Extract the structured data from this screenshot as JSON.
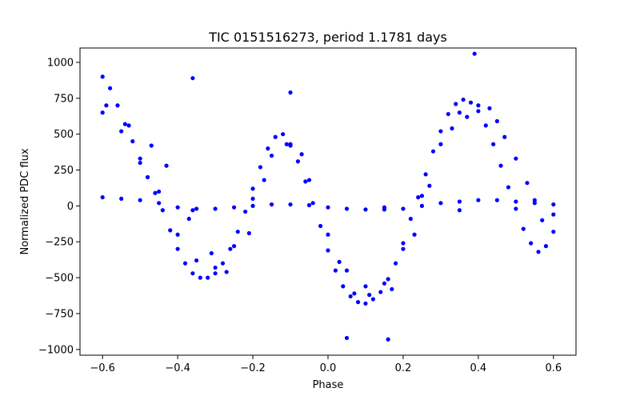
{
  "chart_data": {
    "type": "scatter",
    "title": "TIC 0151516273, period 1.1781 days",
    "xlabel": "Phase",
    "ylabel": "Normalized PDC flux",
    "xlim": [
      -0.66,
      0.66
    ],
    "ylim": [
      -1040,
      1100
    ],
    "xticks": [
      -0.6,
      -0.4,
      -0.2,
      0.0,
      0.2,
      0.4,
      0.6
    ],
    "xtick_labels": [
      "−0.6",
      "−0.4",
      "−0.2",
      "0.0",
      "0.2",
      "0.4",
      "0.6"
    ],
    "yticks": [
      1000,
      750,
      500,
      250,
      0,
      -250,
      -500,
      -750,
      -1000
    ],
    "ytick_labels": [
      "1000",
      "750",
      "500",
      "250",
      "0",
      "−250",
      "−500",
      "−750",
      "−1000"
    ],
    "grid": false,
    "marker_color": "#0000ff",
    "series": [
      {
        "x": [
          -0.6,
          -0.58,
          -0.56,
          -0.54,
          -0.52,
          -0.5,
          -0.48,
          -0.46,
          -0.44,
          -0.42,
          -0.4,
          -0.38,
          -0.36,
          -0.34,
          -0.32,
          -0.3,
          -0.28,
          -0.26,
          -0.24,
          -0.22,
          -0.2,
          -0.18,
          -0.16,
          -0.14,
          -0.12,
          -0.1,
          -0.08,
          -0.06,
          -0.04,
          -0.02,
          0.0,
          0.02,
          0.04,
          0.06,
          0.08,
          0.1,
          0.12,
          0.14,
          0.16,
          0.18,
          0.2,
          0.22,
          0.24,
          0.26,
          0.28,
          0.3,
          0.32,
          0.34,
          0.36,
          0.38,
          0.4,
          0.42,
          0.44,
          0.46,
          0.48,
          0.5,
          0.52,
          0.54,
          0.56,
          0.58,
          0.6,
          -0.6,
          -0.55,
          -0.5,
          -0.45,
          -0.4,
          -0.35,
          -0.3,
          -0.25,
          -0.2,
          -0.15,
          -0.1,
          -0.05,
          0.0,
          0.05,
          0.1,
          0.15,
          0.2,
          0.25,
          0.3,
          0.35,
          0.4,
          0.45,
          0.5,
          0.55,
          0.6,
          -0.59,
          -0.53,
          -0.47,
          -0.43,
          -0.37,
          -0.31,
          -0.27,
          -0.21,
          -0.17,
          -0.11,
          -0.07,
          0.03,
          0.07,
          0.11,
          0.17,
          0.23,
          0.27,
          0.33,
          0.37,
          0.43,
          0.47,
          0.53,
          0.57,
          -0.36,
          -0.36,
          -0.1,
          0.05,
          0.16,
          0.39,
          0.15,
          0.35
        ],
        "y": [
          900,
          820,
          700,
          570,
          450,
          330,
          200,
          90,
          -30,
          -170,
          -300,
          -400,
          -470,
          -500,
          -500,
          -470,
          -400,
          -300,
          -180,
          -40,
          120,
          270,
          400,
          480,
          500,
          430,
          310,
          170,
          20,
          -140,
          -310,
          -450,
          -560,
          -630,
          -670,
          -680,
          -650,
          -600,
          -510,
          -400,
          -260,
          -90,
          60,
          220,
          380,
          520,
          640,
          710,
          740,
          720,
          660,
          560,
          430,
          280,
          130,
          -20,
          -160,
          -260,
          -320,
          -280,
          -180,
          650,
          520,
          300,
          100,
          -200,
          -380,
          -430,
          -280,
          50,
          350,
          420,
          180,
          -200,
          -450,
          -560,
          -540,
          -300,
          70,
          430,
          650,
          700,
          590,
          330,
          40,
          -60,
          700,
          560,
          420,
          280,
          -90,
          -330,
          -460,
          -190,
          180,
          430,
          360,
          -390,
          -610,
          -620,
          -580,
          -200,
          140,
          540,
          620,
          680,
          480,
          160,
          -100,
          890,
          -30,
          790,
          -920,
          -930,
          1060,
          -10,
          -30
        ]
      },
      {
        "x": [
          -0.6,
          -0.55,
          -0.5,
          -0.45,
          -0.4,
          -0.35,
          -0.3,
          -0.25,
          -0.2,
          -0.15,
          -0.1,
          -0.05,
          0.0,
          0.05,
          0.1,
          0.15,
          0.2,
          0.25,
          0.3,
          0.35,
          0.4,
          0.45,
          0.5,
          0.55,
          0.6
        ],
        "y": [
          60,
          50,
          40,
          20,
          -10,
          -20,
          -20,
          -10,
          0,
          10,
          10,
          5,
          -10,
          -20,
          -25,
          -25,
          -20,
          0,
          20,
          30,
          40,
          40,
          30,
          20,
          10
        ]
      }
    ]
  }
}
